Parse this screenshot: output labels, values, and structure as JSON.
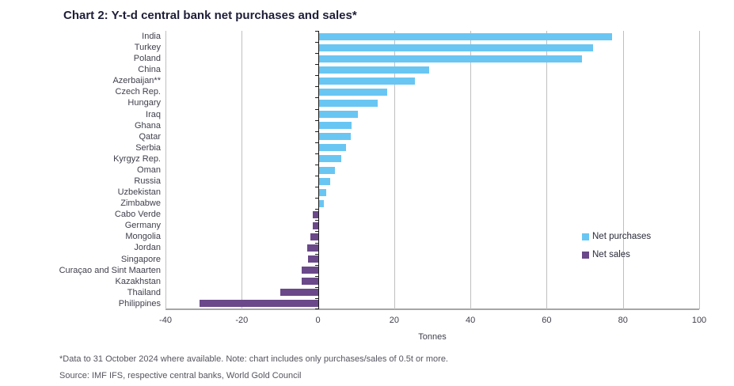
{
  "page": {
    "title": "Chart 2: Y-t-d central bank net purchases and sales*",
    "footnote": "*Data to 31 October 2024 where available. Note: chart includes only purchases/sales of 0.5t or more.",
    "source": "Source: IMF IFS, respective central banks, World Gold Council"
  },
  "colors": {
    "net_purchases": "#69c6f3",
    "net_sales": "#6a4889",
    "gridline": "#bfbfbf",
    "zero_axis": "#1a1a1a",
    "bottom_axis": "#a6a6a6",
    "title_text": "#1d1d38",
    "label_text": "#3f3f4c",
    "footnote_text": "#55555f"
  },
  "chart_data": {
    "type": "bar",
    "orientation": "horizontal",
    "title": "Chart 2: Y-t-d central bank net purchases and sales*",
    "xlabel": "Tonnes",
    "unit": "tonnes",
    "xlim": [
      -40,
      100
    ],
    "x_ticks": [
      -40,
      -20,
      0,
      20,
      40,
      60,
      80,
      100
    ],
    "grid": true,
    "legend_position": "right",
    "positive_series": "Net purchases",
    "negative_series": "Net sales",
    "categories": [
      "India",
      "Turkey",
      "Poland",
      "China",
      "Azerbaijan**",
      "Czech Rep.",
      "Hungary",
      "Iraq",
      "Ghana",
      "Qatar",
      "Serbia",
      "Kyrgyz Rep.",
      "Oman",
      "Russia",
      "Uzbekistan",
      "Zimbabwe",
      "Cabo Verde",
      "Germany",
      "Mongolia",
      "Jordan",
      "Singapore",
      "Curaçao and Sint Maarten",
      "Kazakhstan",
      "Thailand",
      "Philippines"
    ],
    "values": [
      77,
      72,
      69,
      29,
      25.2,
      18,
      15.5,
      10.2,
      8.7,
      8.5,
      7.2,
      5.9,
      4.3,
      3.1,
      1.9,
      1.3,
      -1.3,
      -1.4,
      -1.9,
      -2.9,
      -2.7,
      -4.2,
      -4.3,
      -9.9,
      -31
    ],
    "legend": [
      {
        "label": "Net purchases",
        "color": "#69c6f3"
      },
      {
        "label": "Net sales",
        "color": "#6a4889"
      }
    ]
  }
}
